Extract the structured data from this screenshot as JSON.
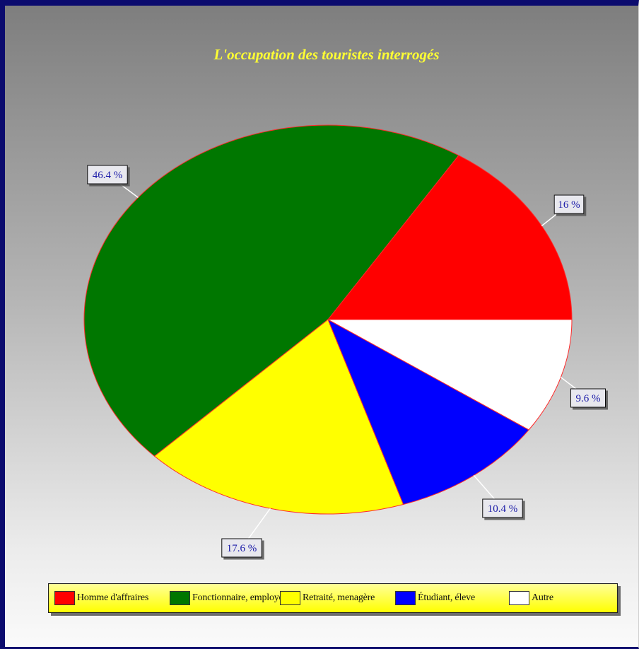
{
  "chart_data": {
    "type": "pie",
    "title": "L'occupation des touristes interrogés",
    "categories": [
      "Homme d'affraires",
      "Fonctionnaire, employé",
      "Retraité, menagère",
      "Étudiant, éleve",
      "Autre"
    ],
    "values": [
      16,
      46.4,
      17.6,
      10.4,
      9.6
    ],
    "labels": [
      "16 %",
      "46.4 %",
      "17.6 %",
      "10.4 %",
      "9.6 %"
    ],
    "colors": [
      "#ff0000",
      "#007700",
      "#ffff00",
      "#0000ff",
      "#ffffff"
    ],
    "legend_position": "bottom"
  }
}
